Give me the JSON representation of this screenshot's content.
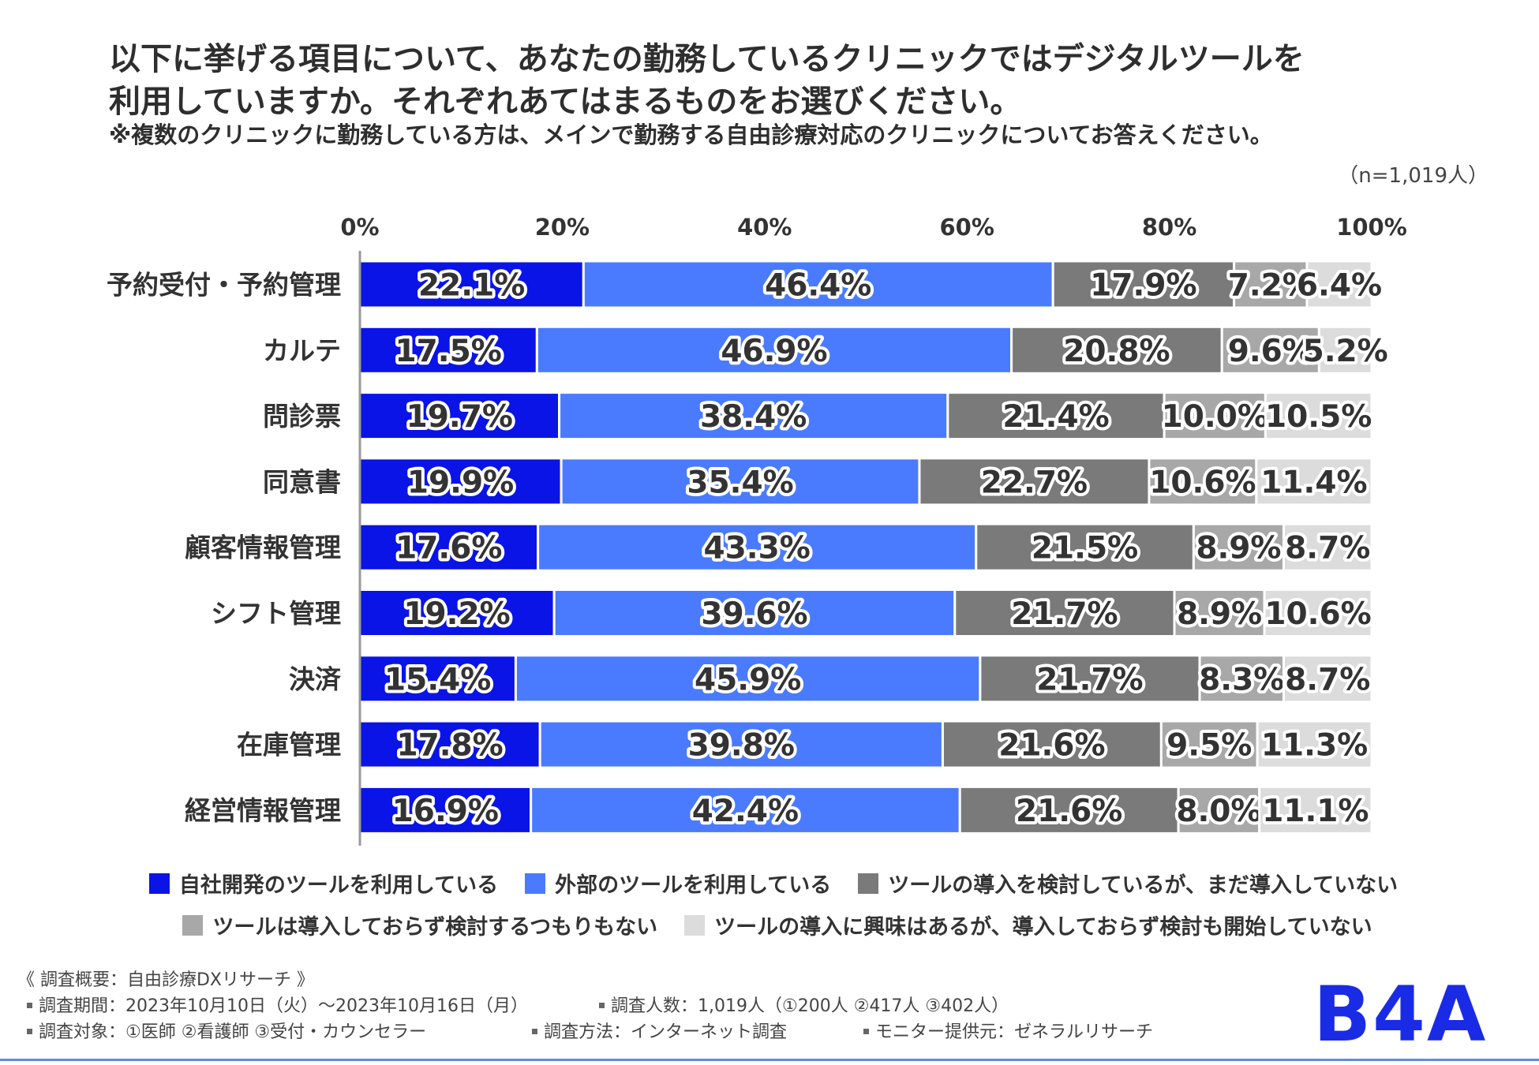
{
  "header": {
    "title_line1": "以下に挙げる項目について、あなたの勤務しているクリニックではデジタルツールを",
    "title_line2": "利用していますか。それぞれあてはまるものをお選びください。",
    "note": "※複数のクリニックに勤務している方は、メインで勤務する自由診療対応のクリニックについてお答えください。",
    "sample_size": "（n=1,019人）"
  },
  "chart_data": {
    "type": "bar",
    "orientation": "horizontal",
    "stacked": true,
    "title": "以下に挙げる項目について、あなたの勤務しているクリニックではデジタルツールを利用していますか。",
    "xlabel": "",
    "ylabel": "",
    "xlim": [
      0,
      100
    ],
    "x_ticks": [
      "0%",
      "20%",
      "40%",
      "60%",
      "80%",
      "100%"
    ],
    "categories": [
      "予約受付・予約管理",
      "カルテ",
      "問診票",
      "同意書",
      "顧客情報管理",
      "シフト管理",
      "決済",
      "在庫管理",
      "経営情報管理"
    ],
    "series": [
      {
        "name": "自社開発のツールを利用している",
        "color": "#0a14e6",
        "values": [
          22.1,
          17.5,
          19.7,
          19.9,
          17.6,
          19.2,
          15.4,
          17.8,
          16.9
        ]
      },
      {
        "name": "外部のツールを利用している",
        "color": "#4a7bff",
        "values": [
          46.4,
          46.9,
          38.4,
          35.4,
          43.3,
          39.6,
          45.9,
          39.8,
          42.4
        ]
      },
      {
        "name": "ツールの導入を検討しているが、まだ導入していない",
        "color": "#7a7a7a",
        "values": [
          17.9,
          20.8,
          21.4,
          22.7,
          21.5,
          21.7,
          21.7,
          21.6,
          21.6
        ]
      },
      {
        "name": "ツールは導入しておらず検討するつもりもない",
        "color": "#a8a8a8",
        "values": [
          7.2,
          9.6,
          10.0,
          10.6,
          8.9,
          8.9,
          8.3,
          9.5,
          8.0
        ]
      },
      {
        "name": "ツールの導入に興味はあるが、導入しておらず検討も開始していない",
        "color": "#dcdcdc",
        "values": [
          6.4,
          5.2,
          10.5,
          11.4,
          8.7,
          10.6,
          8.7,
          11.3,
          11.1
        ]
      }
    ],
    "legend_position": "bottom",
    "grid": false
  },
  "survey": {
    "heading": "《 調査概要：自由診療DXリサーチ 》",
    "period": "調査期間：2023年10月10日（火）～2023年10月16日（月）",
    "respondents": "調査人数：1,019人（①200人 ②417人 ③402人）",
    "target": "調査対象：①医師 ②看護師 ③受付・カウンセラー",
    "method": "調査方法：インターネット調査",
    "monitor": "モニター提供元：ゼネラルリサーチ"
  },
  "logo": {
    "text": "B4A",
    "color": "#1a2be6"
  }
}
